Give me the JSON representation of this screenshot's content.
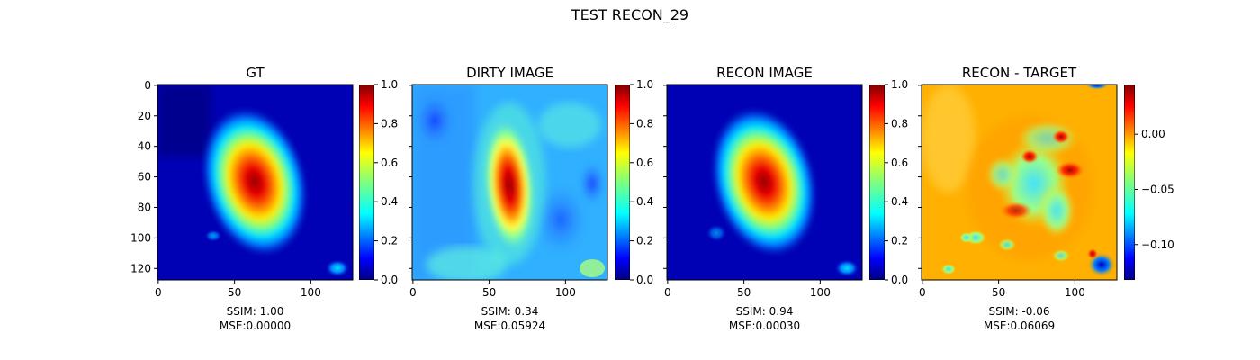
{
  "figure": {
    "suptitle": "TEST RECON_29"
  },
  "colors": {
    "colormap": "jet",
    "jet_stops": [
      "#00007f",
      "#0000ff",
      "#007fff",
      "#00ffff",
      "#7fff7f",
      "#ffff00",
      "#ff7f00",
      "#ff0000",
      "#7f0000"
    ],
    "background": "#ffffff",
    "axis": "#000000"
  },
  "chart_data": [
    {
      "type": "heatmap",
      "title": "GT",
      "image_shape": [
        128,
        128
      ],
      "xlim": [
        0,
        127
      ],
      "ylim": [
        127,
        0
      ],
      "xticks": [
        0,
        50,
        100
      ],
      "yticks": [
        0,
        20,
        40,
        60,
        80,
        100,
        120
      ],
      "show_ytick_labels": true,
      "colorbar": {
        "range": [
          0.0,
          1.0
        ],
        "ticks": [
          0.0,
          0.2,
          0.4,
          0.6,
          0.8,
          1.0
        ],
        "tick_labels": [
          "0.0",
          "0.2",
          "0.4",
          "0.6",
          "0.8",
          "1.0"
        ]
      },
      "xlabel_lines": [
        "SSIM: 1.00",
        "MSE:0.00000"
      ],
      "ssim": 1.0,
      "mse": 0.0
    },
    {
      "type": "heatmap",
      "title": "DIRTY IMAGE",
      "image_shape": [
        128,
        128
      ],
      "xlim": [
        0,
        127
      ],
      "ylim": [
        127,
        0
      ],
      "xticks": [
        0,
        50,
        100
      ],
      "yticks": [
        0,
        20,
        40,
        60,
        80,
        100,
        120
      ],
      "show_ytick_labels": false,
      "colorbar": {
        "range": [
          0.0,
          1.0
        ],
        "ticks": [
          0.0,
          0.2,
          0.4,
          0.6,
          0.8,
          1.0
        ],
        "tick_labels": [
          "0.0",
          "0.2",
          "0.4",
          "0.6",
          "0.8",
          "1.0"
        ]
      },
      "xlabel_lines": [
        "SSIM: 0.34",
        "MSE:0.05924"
      ],
      "ssim": 0.34,
      "mse": 0.05924
    },
    {
      "type": "heatmap",
      "title": "RECON IMAGE",
      "image_shape": [
        128,
        128
      ],
      "xlim": [
        0,
        127
      ],
      "ylim": [
        127,
        0
      ],
      "xticks": [
        0,
        50,
        100
      ],
      "yticks": [
        0,
        20,
        40,
        60,
        80,
        100,
        120
      ],
      "show_ytick_labels": false,
      "colorbar": {
        "range": [
          0.0,
          1.0
        ],
        "ticks": [
          0.0,
          0.2,
          0.4,
          0.6,
          0.8,
          1.0
        ],
        "tick_labels": [
          "0.0",
          "0.2",
          "0.4",
          "0.6",
          "0.8",
          "1.0"
        ]
      },
      "xlabel_lines": [
        "SSIM: 0.94",
        "MSE:0.00030"
      ],
      "ssim": 0.94,
      "mse": 0.0003
    },
    {
      "type": "heatmap",
      "title": "RECON - TARGET",
      "image_shape": [
        128,
        128
      ],
      "xlim": [
        0,
        127
      ],
      "ylim": [
        127,
        0
      ],
      "xticks": [
        0,
        50,
        100
      ],
      "yticks": [
        0,
        20,
        40,
        60,
        80,
        100,
        120
      ],
      "show_ytick_labels": false,
      "colorbar": {
        "range": [
          -0.132,
          0.045
        ],
        "ticks": [
          -0.1,
          -0.05,
          0.0
        ],
        "tick_labels": [
          "−0.10",
          "−0.05",
          "0.00"
        ]
      },
      "xlabel_lines": [
        "SSIM: -0.06",
        "MSE:0.06069"
      ],
      "ssim": -0.06,
      "mse": 0.06069
    }
  ]
}
